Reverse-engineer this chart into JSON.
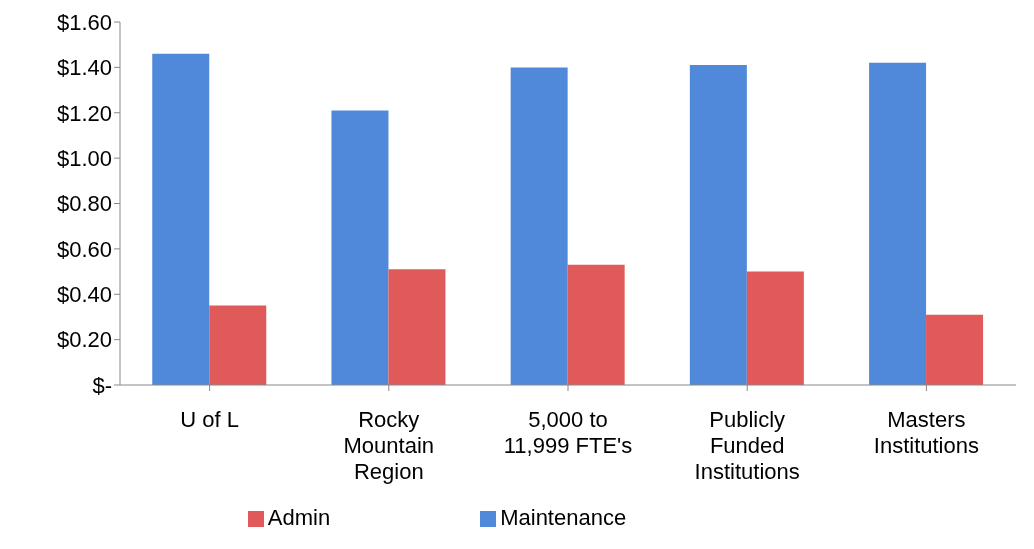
{
  "chart_data": {
    "type": "bar",
    "categories": [
      "U of L",
      "Rocky Mountain Region",
      "5,000 to 11,999 FTE's",
      "Publicly Funded Institutions",
      "Masters Institutions"
    ],
    "series": [
      {
        "name": "Maintenance",
        "color": "#5089da",
        "values": [
          1.46,
          1.21,
          1.4,
          1.41,
          1.42
        ]
      },
      {
        "name": "Admin",
        "color": "#e05a5a",
        "values": [
          0.35,
          0.51,
          0.53,
          0.5,
          0.31
        ]
      }
    ],
    "ylim": [
      0,
      1.6
    ],
    "yticks": [
      {
        "value": 0,
        "label": "$-"
      },
      {
        "value": 0.2,
        "label": "$0.20"
      },
      {
        "value": 0.4,
        "label": "$0.40"
      },
      {
        "value": 0.6,
        "label": "$0.60"
      },
      {
        "value": 0.8,
        "label": "$0.80"
      },
      {
        "value": 1,
        "label": "$1.00"
      },
      {
        "value": 1.2,
        "label": "$1.20"
      },
      {
        "value": 1.4,
        "label": "$1.40"
      },
      {
        "value": 1.6,
        "label": "$1.60"
      }
    ],
    "grid": false,
    "legend": "bottom"
  }
}
